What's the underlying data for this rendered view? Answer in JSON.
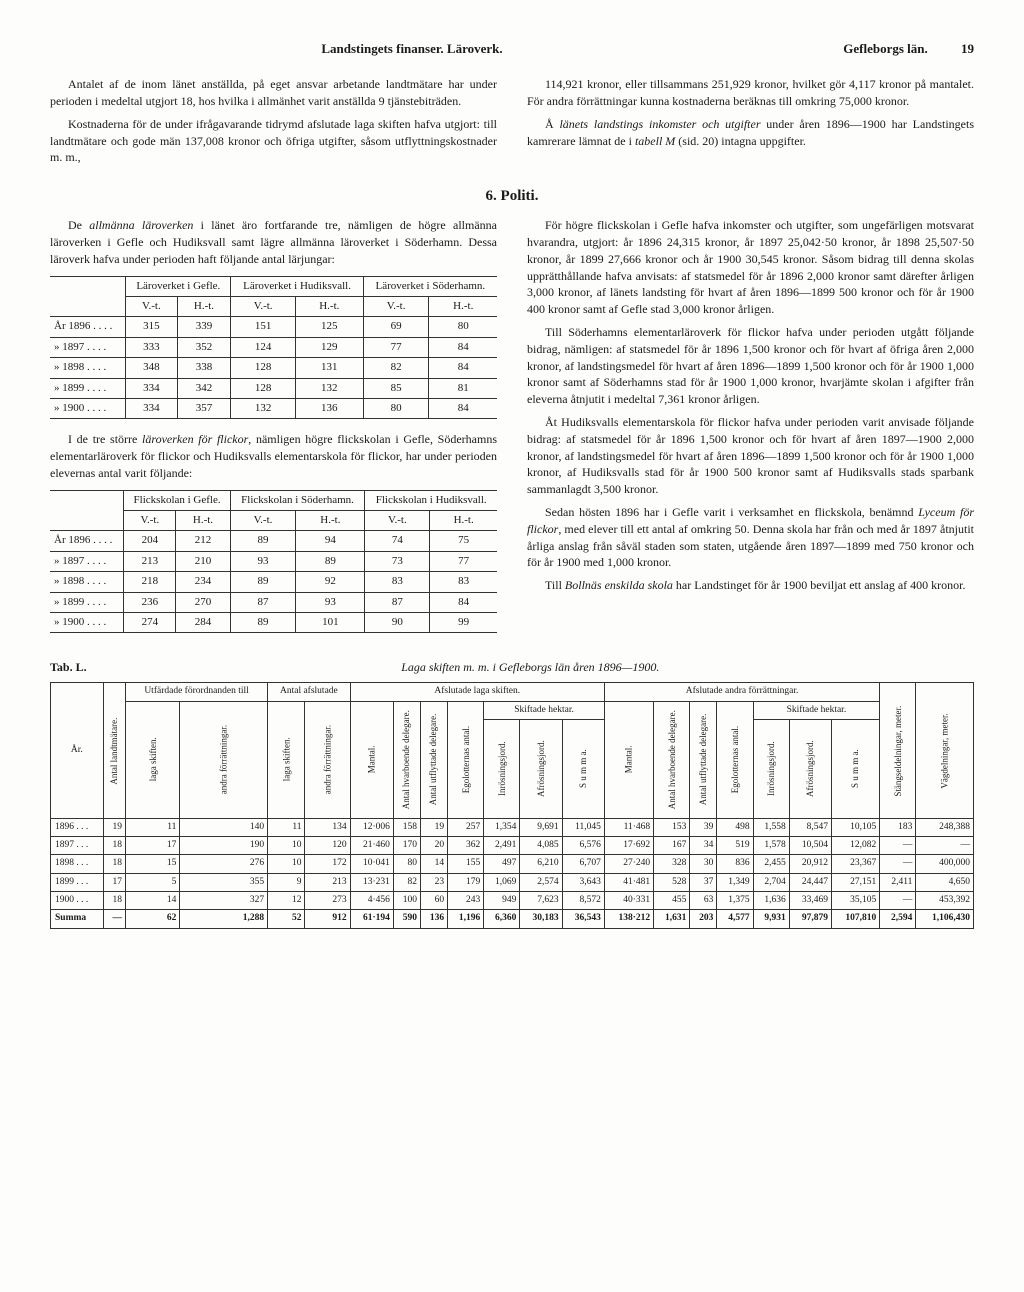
{
  "header": {
    "center": "Landstingets finanser.  Läroverk.",
    "right_region": "Gefleborgs län.",
    "page_number": "19"
  },
  "intro": {
    "left_p1": "Antalet af de inom länet anställda, på eget ansvar arbetande landtmätare har under perioden i medeltal utgjort 18, hos hvilka i allmänhet varit anställda 9 tjänstebiträden.",
    "left_p2": "Kostnaderna för de under ifrågavarande tidrymd afslutade laga skiften hafva utgjort: till landtmätare och gode män 137,008 kronor och öfriga utgifter, såsom utflyttningskostnader m. m.,",
    "right_p1": "114,921 kronor, eller tillsammans 251,929 kronor, hvilket gör 4,117 kronor på mantalet. För andra förrättningar kunna kostnaderna beräknas till omkring 75,000 kronor.",
    "right_p2_a": "Å ",
    "right_p2_em": "länets landstings inkomster och utgifter",
    "right_p2_b": " under åren 1896—1900 har Landstingets kamrerare lämnat de i ",
    "right_p2_em2": "tabell M",
    "right_p2_c": " (sid. 20) intagna uppgifter."
  },
  "section6": {
    "title": "6.  Politi.",
    "left_p1_a": "De ",
    "left_p1_em": "allmänna läroverken",
    "left_p1_b": " i länet äro fortfarande tre, nämligen de högre allmänna läroverken i Gefle och Hudiksvall samt lägre allmänna läroverket i Söderhamn. Dessa läroverk hafva under perioden haft följande antal lärjungar:",
    "table1": {
      "h_gefle": "Läroverket i Gefle.",
      "h_hud": "Läroverket i Hudiksvall.",
      "h_sod": "Läroverket i Söderhamn.",
      "sub_vt": "V.-t.",
      "sub_ht": "H.-t.",
      "rows": [
        {
          "y": "År 1896 . . . .",
          "a": "315",
          "b": "339",
          "c": "151",
          "d": "125",
          "e": "69",
          "f": "80"
        },
        {
          "y": "»  1897 . . . .",
          "a": "333",
          "b": "352",
          "c": "124",
          "d": "129",
          "e": "77",
          "f": "84"
        },
        {
          "y": "»  1898 . . . .",
          "a": "348",
          "b": "338",
          "c": "128",
          "d": "131",
          "e": "82",
          "f": "84"
        },
        {
          "y": "»  1899 . . . .",
          "a": "334",
          "b": "342",
          "c": "128",
          "d": "132",
          "e": "85",
          "f": "81"
        },
        {
          "y": "»  1900 . . . .",
          "a": "334",
          "b": "357",
          "c": "132",
          "d": "136",
          "e": "80",
          "f": "84"
        }
      ]
    },
    "left_p2_a": "I de tre större ",
    "left_p2_em": "läroverken för flickor",
    "left_p2_b": ", nämligen högre flickskolan i Gefle, Söderhamns elementarläroverk för flickor och Hudiksvalls elementarskola för flickor, har under perioden elevernas antal varit följande:",
    "table2": {
      "h_gefle": "Flickskolan i Gefle.",
      "h_sod": "Flickskolan i Söderhamn.",
      "h_hud": "Flickskolan i Hudiksvall.",
      "rows": [
        {
          "y": "År 1896 . . . .",
          "a": "204",
          "b": "212",
          "c": "89",
          "d": "94",
          "e": "74",
          "f": "75"
        },
        {
          "y": "»  1897 . . . .",
          "a": "213",
          "b": "210",
          "c": "93",
          "d": "89",
          "e": "73",
          "f": "77"
        },
        {
          "y": "»  1898 . . . .",
          "a": "218",
          "b": "234",
          "c": "89",
          "d": "92",
          "e": "83",
          "f": "83"
        },
        {
          "y": "»  1899 . . . .",
          "a": "236",
          "b": "270",
          "c": "87",
          "d": "93",
          "e": "87",
          "f": "84"
        },
        {
          "y": "»  1900 . . . .",
          "a": "274",
          "b": "284",
          "c": "89",
          "d": "101",
          "e": "90",
          "f": "99"
        }
      ]
    },
    "right_p1": "För högre flickskolan i Gefle hafva inkomster och utgifter, som ungefärligen motsvarat hvarandra, utgjort: år 1896 24,315 kronor, år 1897 25,042·50 kronor, år 1898 25,507·50 kronor, år 1899 27,666 kronor och år 1900 30,545 kronor. Såsom bidrag till denna skolas upprätthållande hafva anvisats: af statsmedel för år 1896 2,000 kronor samt därefter årligen 3,000 kronor, af länets landsting för hvart af åren 1896—1899 500 kronor och för år 1900 400 kronor samt af Gefle stad 3,000 kronor årligen.",
    "right_p2": "Till Söderhamns elementarläroverk för flickor hafva under perioden utgått följande bidrag, nämligen: af statsmedel för år 1896 1,500 kronor och för hvart af öfriga åren 2,000 kronor, af landstingsmedel för hvart af åren 1896—1899 1,500 kronor och för år 1900 1,000 kronor samt af Söderhamns stad för år 1900 1,000 kronor, hvarjämte skolan i afgifter från eleverna åtnjutit i medeltal 7,361 kronor årligen.",
    "right_p3": "Åt Hudiksvalls elementarskola för flickor hafva under perioden varit anvisade följande bidrag: af statsmedel för år 1896 1,500 kronor och för hvart af åren 1897—1900 2,000 kronor, af landstingsmedel för hvart af åren 1896—1899 1,500 kronor och för år 1900 1,000 kronor, af Hudiksvalls stad för år 1900 500 kronor samt af Hudiksvalls stads sparbank sammanlagdt 3,500 kronor.",
    "right_p4_a": "Sedan hösten 1896 har i Gefle varit i verksamhet en flickskola, benämnd ",
    "right_p4_em": "Lyceum för flickor",
    "right_p4_b": ", med elever till ett antal af omkring 50. Denna skola har från och med år 1897 åtnjutit årliga anslag från såväl staden som staten, utgående åren 1897—1899 med 750 kronor och för år 1900 med 1,000 kronor.",
    "right_p5_a": "Till ",
    "right_p5_em": "Bollnäs enskilda skola",
    "right_p5_b": " har Landstinget för år 1900 beviljat ett anslag af 400 kronor."
  },
  "tabL": {
    "label": "Tab. L.",
    "title": "Laga skiften m. m. i Gefleborgs län åren 1896—1900.",
    "headers": {
      "ar": "År.",
      "antal_lm": "Antal landtmätare.",
      "utf_group": "Utfärdade förordnan­den till",
      "utf_laga": "laga skiften.",
      "utf_andra": "andra förrättningar.",
      "afs_group": "Antal afslutade",
      "afs_laga": "laga skiften.",
      "afs_andra": "andra förrättningar.",
      "big1": "Afslutade laga skiften.",
      "big2": "Afslutade andra förrättningar.",
      "mantal": "Mantal.",
      "hvarb": "Antal hvarboende delegare.",
      "utfl": "Antal utflyttade delegare.",
      "ego": "Egolotternas antal.",
      "sh": "Skiftade hektar.",
      "inr": "Inrösningsjord.",
      "afr": "Afrösningsjord.",
      "sum": "S u m m a.",
      "stang": "Stängseldeln­ingar, meter.",
      "vag": "Vägdelningar, meter."
    },
    "rows": [
      {
        "y": "1896 . . .",
        "c": [
          "19",
          "11",
          "140",
          "11",
          "134",
          "12·006",
          "158",
          "19",
          "257",
          "1,354",
          "9,691",
          "11,045",
          "11·468",
          "153",
          "39",
          "498",
          "1,558",
          "8,547",
          "10,105",
          "183",
          "248,388"
        ]
      },
      {
        "y": "1897 . . .",
        "c": [
          "18",
          "17",
          "190",
          "10",
          "120",
          "21·460",
          "170",
          "20",
          "362",
          "2,491",
          "4,085",
          "6,576",
          "17·692",
          "167",
          "34",
          "519",
          "1,578",
          "10,504",
          "12,082",
          "—",
          "—"
        ]
      },
      {
        "y": "1898 . . .",
        "c": [
          "18",
          "15",
          "276",
          "10",
          "172",
          "10·041",
          "80",
          "14",
          "155",
          "497",
          "6,210",
          "6,707",
          "27·240",
          "328",
          "30",
          "836",
          "2,455",
          "20,912",
          "23,367",
          "—",
          "400,000"
        ]
      },
      {
        "y": "1899 . . .",
        "c": [
          "17",
          "5",
          "355",
          "9",
          "213",
          "13·231",
          "82",
          "23",
          "179",
          "1,069",
          "2,574",
          "3,643",
          "41·481",
          "528",
          "37",
          "1,349",
          "2,704",
          "24,447",
          "27,151",
          "2,411",
          "4,650"
        ]
      },
      {
        "y": "1900 . . .",
        "c": [
          "18",
          "14",
          "327",
          "12",
          "273",
          "4·456",
          "100",
          "60",
          "243",
          "949",
          "7,623",
          "8,572",
          "40·331",
          "455",
          "63",
          "1,375",
          "1,636",
          "33,469",
          "35,105",
          "—",
          "453,392"
        ]
      }
    ],
    "sum": {
      "y": "Summa",
      "c": [
        "—",
        "62",
        "1,288",
        "52",
        "912",
        "61·194",
        "590",
        "136",
        "1,196",
        "6,360",
        "30,183",
        "36,543",
        "138·212",
        "1,631",
        "203",
        "4,577",
        "9,931",
        "97,879",
        "107,810",
        "2,594",
        "1,106,430"
      ]
    }
  }
}
